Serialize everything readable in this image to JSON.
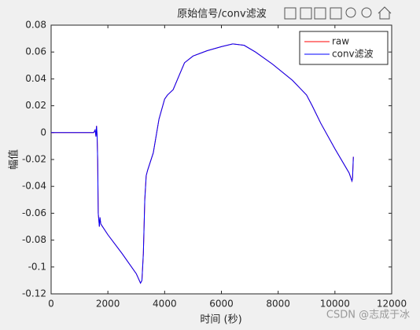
{
  "chart_data": {
    "type": "line",
    "title": "原始信号/conv滤波",
    "x_label": "时间 (秒)",
    "y_label": "幅值",
    "x": [
      0,
      1500,
      1550,
      1580,
      1600,
      1620,
      1640,
      1660,
      1680,
      1700,
      1720,
      1750,
      2000,
      2500,
      3000,
      3150,
      3200,
      3250,
      3300,
      3350,
      3400,
      3600,
      3800,
      4000,
      4100,
      4300,
      4500,
      4700,
      5000,
      5500,
      6000,
      6400,
      6800,
      7200,
      7800,
      8500,
      9000,
      9200,
      9500,
      10000,
      10500,
      10600,
      10620,
      10650
    ],
    "series": [
      {
        "name": "raw",
        "color": "#ff0000",
        "values": [
          0,
          0,
          0.002,
          -0.003,
          0.005,
          -0.002,
          -0.02,
          -0.06,
          -0.065,
          -0.07,
          -0.063,
          -0.068,
          -0.076,
          -0.09,
          -0.105,
          -0.112,
          -0.11,
          -0.09,
          -0.05,
          -0.032,
          -0.028,
          -0.015,
          0.01,
          0.025,
          0.028,
          0.032,
          0.042,
          0.052,
          0.057,
          0.061,
          0.064,
          0.066,
          0.065,
          0.06,
          0.051,
          0.039,
          0.028,
          0.02,
          0.007,
          -0.012,
          -0.03,
          -0.036,
          -0.034,
          -0.018
        ]
      },
      {
        "name": "conv滤波",
        "color": "#0000ff",
        "values": [
          0,
          0,
          0.002,
          -0.003,
          0.005,
          -0.002,
          -0.02,
          -0.06,
          -0.065,
          -0.07,
          -0.063,
          -0.068,
          -0.076,
          -0.09,
          -0.105,
          -0.112,
          -0.11,
          -0.09,
          -0.05,
          -0.032,
          -0.028,
          -0.015,
          0.01,
          0.025,
          0.028,
          0.032,
          0.042,
          0.052,
          0.057,
          0.061,
          0.064,
          0.066,
          0.065,
          0.06,
          0.051,
          0.039,
          0.028,
          0.02,
          0.007,
          -0.012,
          -0.03,
          -0.036,
          -0.034,
          -0.018
        ]
      }
    ],
    "xlim": [
      0,
      12000
    ],
    "xticks": [
      0,
      2000,
      4000,
      6000,
      8000,
      10000,
      12000
    ],
    "ylim": [
      -0.12,
      0.08
    ],
    "yticks": [
      -0.12,
      -0.1,
      -0.08,
      -0.06,
      -0.04,
      -0.02,
      0,
      0.02,
      0.04,
      0.06,
      0.08
    ],
    "grid": false,
    "legend": "top-right",
    "watermark": "CSDN @志成于冰"
  }
}
